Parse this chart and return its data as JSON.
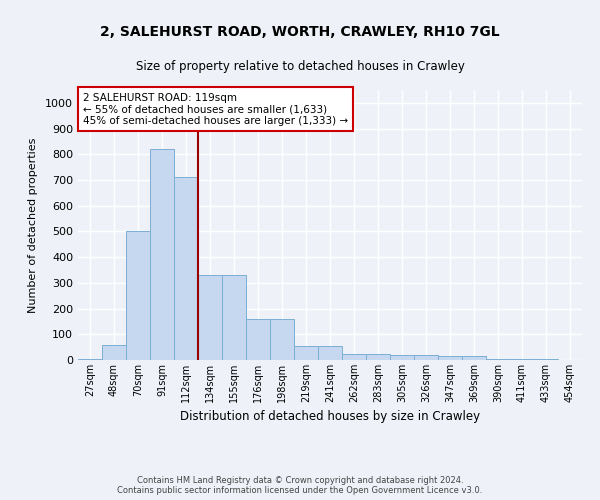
{
  "title1": "2, SALEHURST ROAD, WORTH, CRAWLEY, RH10 7GL",
  "title2": "Size of property relative to detached houses in Crawley",
  "xlabel": "Distribution of detached houses by size in Crawley",
  "ylabel": "Number of detached properties",
  "bin_labels": [
    "27sqm",
    "48sqm",
    "70sqm",
    "91sqm",
    "112sqm",
    "134sqm",
    "155sqm",
    "176sqm",
    "198sqm",
    "219sqm",
    "241sqm",
    "262sqm",
    "283sqm",
    "305sqm",
    "326sqm",
    "347sqm",
    "369sqm",
    "390sqm",
    "411sqm",
    "433sqm",
    "454sqm"
  ],
  "bar_values": [
    5,
    60,
    500,
    820,
    710,
    330,
    330,
    160,
    160,
    55,
    55,
    25,
    25,
    18,
    18,
    15,
    15,
    5,
    5,
    5,
    0
  ],
  "bar_color": "#c5d8f0",
  "bar_edge_color": "#7bafd4",
  "annotation_text": "2 SALEHURST ROAD: 119sqm\n← 55% of detached houses are smaller (1,633)\n45% of semi-detached houses are larger (1,333) →",
  "vline_color": "#990000",
  "annotation_box_color": "#ffffff",
  "annotation_box_edge_color": "#cc0000",
  "ylim": [
    0,
    1050
  ],
  "yticks": [
    0,
    100,
    200,
    300,
    400,
    500,
    600,
    700,
    800,
    900,
    1000
  ],
  "footer_text": "Contains HM Land Registry data © Crown copyright and database right 2024.\nContains public sector information licensed under the Open Government Licence v3.0.",
  "background_color": "#eef2f8",
  "plot_bg_color": "#eef2f8",
  "grid_color": "#ffffff",
  "vline_bar_index": 4
}
